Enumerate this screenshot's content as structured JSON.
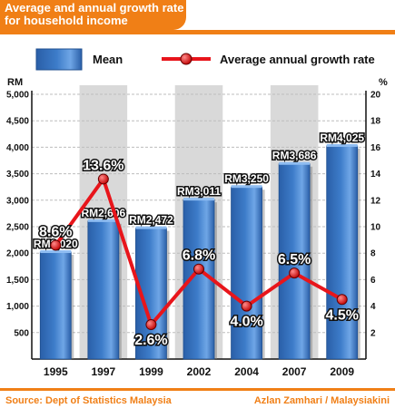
{
  "header": {
    "title": "Average and annual growth rate for household income"
  },
  "legend": {
    "mean_label": "Mean",
    "growth_label": "Average annual growth rate"
  },
  "footer": {
    "source": "Source: Dept of Statistics Malaysia",
    "credit": "Azlan Zamhari / Malaysiakini"
  },
  "colors": {
    "accent": "#f07f16",
    "bar": "#3d7cc9",
    "line": "#e8151b",
    "band": "#d9d9d9"
  },
  "chart_data": {
    "type": "bar",
    "categories": [
      "1995",
      "1997",
      "1999",
      "2002",
      "2004",
      "2007",
      "2009"
    ],
    "series": [
      {
        "name": "Mean",
        "type": "bar",
        "axis": "left",
        "values": [
          2020,
          2606,
          2472,
          3011,
          3250,
          3686,
          4025
        ],
        "labels": [
          "RM2,020",
          "RM2,606",
          "RM2,472",
          "RM3,011",
          "RM3,250",
          "RM3,686",
          "RM4,025"
        ]
      },
      {
        "name": "Average annual growth rate",
        "type": "line",
        "axis": "right",
        "values": [
          8.6,
          13.6,
          2.6,
          6.8,
          4.0,
          6.5,
          4.5
        ],
        "labels": [
          "8.6%",
          "13.6%",
          "2.6%",
          "6.8%",
          "4.0%",
          "6.5%",
          "4.5%"
        ]
      }
    ],
    "ylabel_left": "RM",
    "ylabel_right": "%",
    "ylim_left": [
      0,
      5000
    ],
    "ylim_right": [
      0,
      20
    ],
    "yticks_left": [
      "500",
      "1,000",
      "1,500",
      "2,000",
      "2,500",
      "3,000",
      "3,500",
      "4,000",
      "4,500",
      "5,000"
    ],
    "yticks_right": [
      "2",
      "4",
      "6",
      "8",
      "10",
      "12",
      "14",
      "16",
      "18",
      "20"
    ],
    "grid": true,
    "legend_position": "top"
  }
}
